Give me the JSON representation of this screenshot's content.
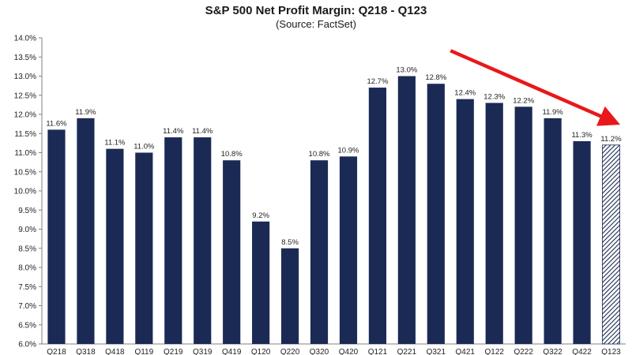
{
  "chart_data": {
    "type": "bar",
    "title": "S&P 500 Net Profit Margin: Q218 - Q123",
    "subtitle": "(Source: FactSet)",
    "categories": [
      "Q218",
      "Q318",
      "Q418",
      "Q119",
      "Q219",
      "Q319",
      "Q419",
      "Q120",
      "Q220",
      "Q320",
      "Q420",
      "Q121",
      "Q221",
      "Q321",
      "Q421",
      "Q122",
      "Q222",
      "Q322",
      "Q422",
      "Q123"
    ],
    "values": [
      11.6,
      11.9,
      11.1,
      11.0,
      11.4,
      11.4,
      10.8,
      9.2,
      8.5,
      10.8,
      10.9,
      12.7,
      13.0,
      12.8,
      12.4,
      12.3,
      12.2,
      11.9,
      11.3,
      11.2
    ],
    "data_labels": [
      "11.6%",
      "11.9%",
      "11.1%",
      "11.0%",
      "11.4%",
      "11.4%",
      "10.8%",
      "9.2%",
      "8.5%",
      "10.8%",
      "10.9%",
      "12.7%",
      "13.0%",
      "12.8%",
      "12.4%",
      "12.3%",
      "12.2%",
      "11.9%",
      "11.3%",
      "11.2%"
    ],
    "ylim": [
      6.0,
      14.0
    ],
    "yticks": [
      "6.0%",
      "6.5%",
      "7.0%",
      "7.5%",
      "8.0%",
      "8.5%",
      "9.0%",
      "9.5%",
      "10.0%",
      "10.5%",
      "11.0%",
      "11.5%",
      "12.0%",
      "12.5%",
      "13.0%",
      "13.5%",
      "14.0%"
    ],
    "ytick_values": [
      6.0,
      6.5,
      7.0,
      7.5,
      8.0,
      8.5,
      9.0,
      9.5,
      10.0,
      10.5,
      11.0,
      11.5,
      12.0,
      12.5,
      13.0,
      13.5,
      14.0
    ],
    "xlabel": "",
    "ylabel": "",
    "grid": false,
    "bar_color": "#1b2a55",
    "estimate_bar_index": 19,
    "annotation": {
      "type": "arrow",
      "color": "#e8181b",
      "from_category": "Q421",
      "to_category": "Q123",
      "from_value": 13.5,
      "to_value": 12.0
    }
  }
}
